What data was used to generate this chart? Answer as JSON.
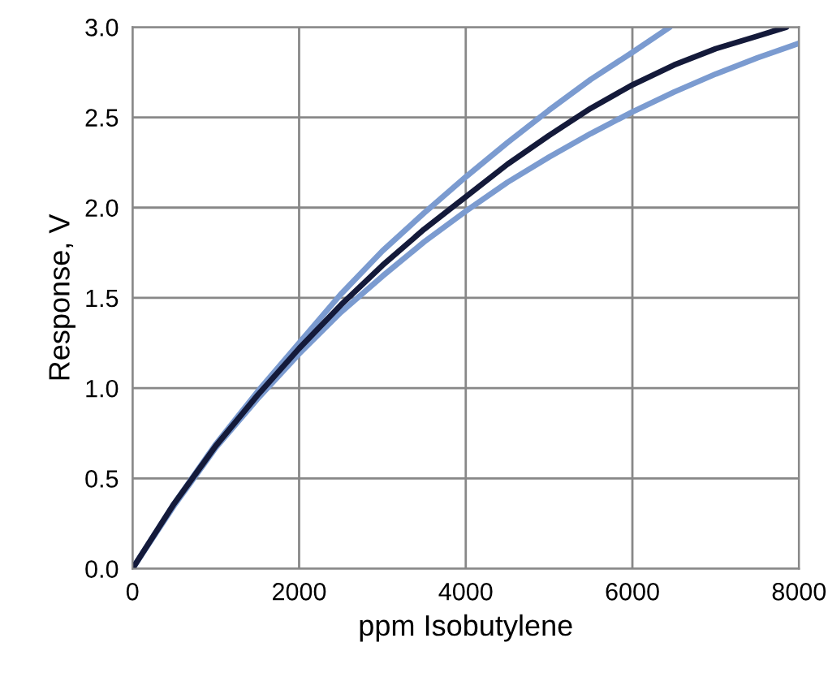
{
  "chart_data": {
    "type": "line",
    "xlabel": "ppm Isobutylene",
    "ylabel": "Response, V",
    "xlim": [
      0,
      8000
    ],
    "ylim": [
      0,
      3.0
    ],
    "xticks": [
      0,
      2000,
      4000,
      6000,
      8000
    ],
    "yticks": [
      {
        "value": 0,
        "label": "0.0"
      },
      {
        "value": 0.5,
        "label": "0.5"
      },
      {
        "value": 1.0,
        "label": "1.0"
      },
      {
        "value": 1.5,
        "label": "1.5"
      },
      {
        "value": 2.0,
        "label": "2.0"
      },
      {
        "value": 2.5,
        "label": "2.5"
      },
      {
        "value": 3.0,
        "label": "3.0"
      }
    ],
    "grid": true,
    "legend": false,
    "marker": "none",
    "line_style": "solid",
    "series": [
      {
        "color": "#7b9bd0",
        "x": [
          0,
          500,
          1000,
          1500,
          2000,
          2500,
          3000,
          3500,
          4000,
          4500,
          5000,
          5500,
          6000,
          6450
        ],
        "values": [
          0,
          0.36,
          0.69,
          0.98,
          1.25,
          1.52,
          1.76,
          1.97,
          2.17,
          2.36,
          2.54,
          2.71,
          2.86,
          3.0
        ]
      },
      {
        "color": "#7b9bd0",
        "x": [
          0,
          500,
          1000,
          1500,
          2000,
          2500,
          3000,
          3500,
          4000,
          4500,
          5000,
          5500,
          6000,
          6500,
          7000,
          7500,
          8000
        ],
        "values": [
          0,
          0.35,
          0.67,
          0.94,
          1.19,
          1.42,
          1.62,
          1.81,
          1.98,
          2.14,
          2.28,
          2.41,
          2.53,
          2.64,
          2.74,
          2.83,
          2.91
        ]
      },
      {
        "color": "#141a3a",
        "x": [
          0,
          500,
          1000,
          1500,
          2000,
          2500,
          3000,
          3500,
          4000,
          4500,
          5000,
          5500,
          6000,
          6500,
          7000,
          7500,
          7850
        ],
        "values": [
          0,
          0.36,
          0.68,
          0.96,
          1.22,
          1.46,
          1.68,
          1.88,
          2.06,
          2.24,
          2.4,
          2.55,
          2.68,
          2.79,
          2.88,
          2.95,
          3.0
        ]
      }
    ]
  }
}
